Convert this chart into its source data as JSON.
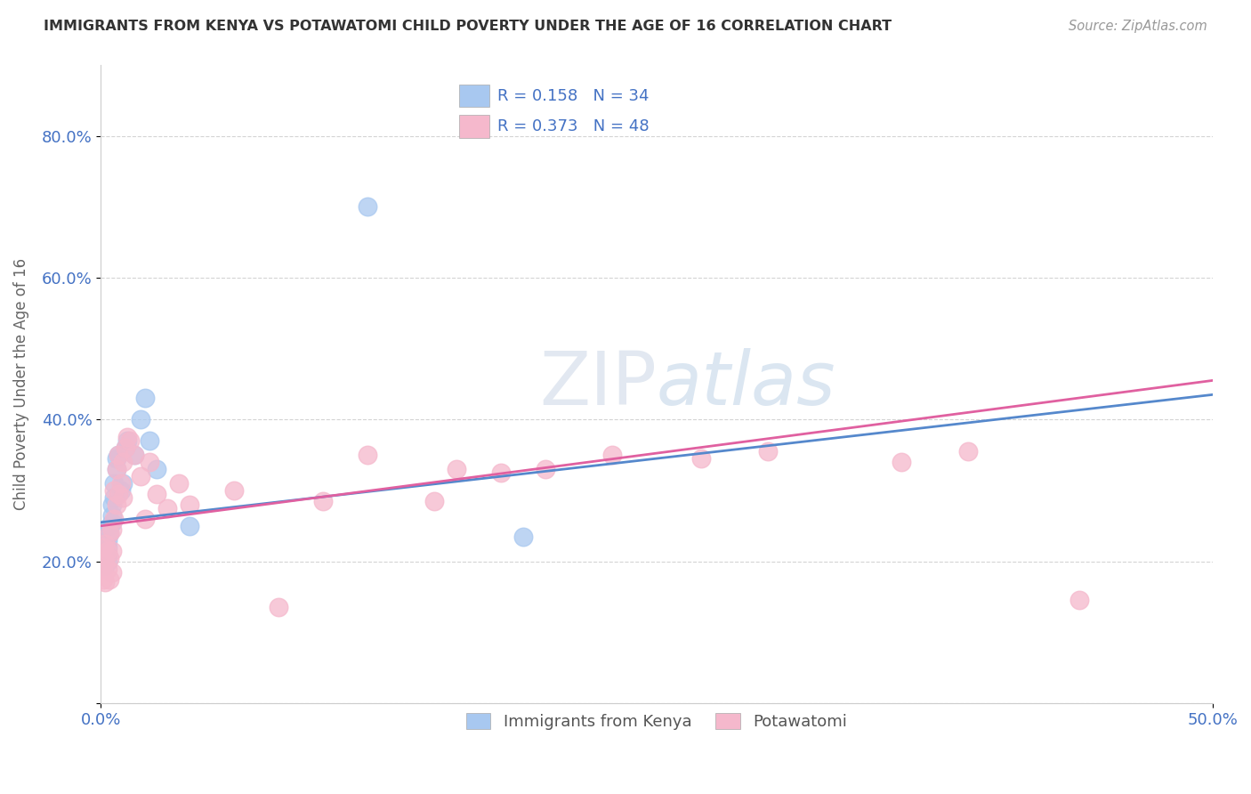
{
  "title": "IMMIGRANTS FROM KENYA VS POTAWATOMI CHILD POVERTY UNDER THE AGE OF 16 CORRELATION CHART",
  "source": "Source: ZipAtlas.com",
  "ylabel": "Child Poverty Under the Age of 16",
  "xlim": [
    0.0,
    0.5
  ],
  "ylim": [
    0.0,
    0.9
  ],
  "y_ticks": [
    0.0,
    0.2,
    0.4,
    0.6,
    0.8
  ],
  "y_tick_labels": [
    "",
    "20.0%",
    "40.0%",
    "60.0%",
    "80.0%"
  ],
  "grid_color": "#d0d0d0",
  "background_color": "#ffffff",
  "kenya_color": "#a8c8f0",
  "kenya_edge_color": "#7aaad0",
  "potawatomi_color": "#f5b8cc",
  "potawatomi_edge_color": "#e080a0",
  "kenya_R": 0.158,
  "kenya_N": 34,
  "potawatomi_R": 0.373,
  "potawatomi_N": 48,
  "watermark_zip": "ZIP",
  "watermark_atlas": "atlas",
  "legend_labels": [
    "Immigrants from Kenya",
    "Potawatomi"
  ],
  "kenya_line_color": "#5588cc",
  "potawatomi_line_color": "#e060a0",
  "kenya_line_start_y": 0.255,
  "kenya_line_end_y": 0.435,
  "potawatomi_line_start_y": 0.25,
  "potawatomi_line_end_y": 0.455,
  "kenya_scatter_x": [
    0.001,
    0.001,
    0.001,
    0.001,
    0.002,
    0.002,
    0.002,
    0.002,
    0.003,
    0.003,
    0.003,
    0.003,
    0.004,
    0.004,
    0.005,
    0.005,
    0.005,
    0.006,
    0.006,
    0.007,
    0.007,
    0.008,
    0.009,
    0.01,
    0.011,
    0.012,
    0.015,
    0.018,
    0.02,
    0.022,
    0.025,
    0.04,
    0.12,
    0.19
  ],
  "kenya_scatter_y": [
    0.195,
    0.2,
    0.21,
    0.22,
    0.195,
    0.205,
    0.215,
    0.225,
    0.2,
    0.21,
    0.22,
    0.23,
    0.25,
    0.24,
    0.255,
    0.265,
    0.28,
    0.29,
    0.31,
    0.33,
    0.345,
    0.35,
    0.3,
    0.31,
    0.36,
    0.37,
    0.35,
    0.4,
    0.43,
    0.37,
    0.33,
    0.25,
    0.7,
    0.235
  ],
  "potawatomi_scatter_x": [
    0.001,
    0.001,
    0.001,
    0.002,
    0.002,
    0.002,
    0.003,
    0.003,
    0.004,
    0.004,
    0.004,
    0.005,
    0.005,
    0.005,
    0.006,
    0.006,
    0.007,
    0.007,
    0.008,
    0.008,
    0.009,
    0.01,
    0.01,
    0.011,
    0.012,
    0.013,
    0.015,
    0.018,
    0.02,
    0.022,
    0.025,
    0.03,
    0.035,
    0.04,
    0.06,
    0.08,
    0.1,
    0.12,
    0.15,
    0.16,
    0.18,
    0.2,
    0.23,
    0.27,
    0.3,
    0.36,
    0.39,
    0.44
  ],
  "potawatomi_scatter_y": [
    0.175,
    0.19,
    0.22,
    0.17,
    0.2,
    0.225,
    0.19,
    0.215,
    0.175,
    0.205,
    0.24,
    0.185,
    0.215,
    0.245,
    0.26,
    0.3,
    0.28,
    0.33,
    0.295,
    0.35,
    0.31,
    0.29,
    0.34,
    0.36,
    0.375,
    0.37,
    0.35,
    0.32,
    0.26,
    0.34,
    0.295,
    0.275,
    0.31,
    0.28,
    0.3,
    0.135,
    0.285,
    0.35,
    0.285,
    0.33,
    0.325,
    0.33,
    0.35,
    0.345,
    0.355,
    0.34,
    0.355,
    0.145
  ]
}
